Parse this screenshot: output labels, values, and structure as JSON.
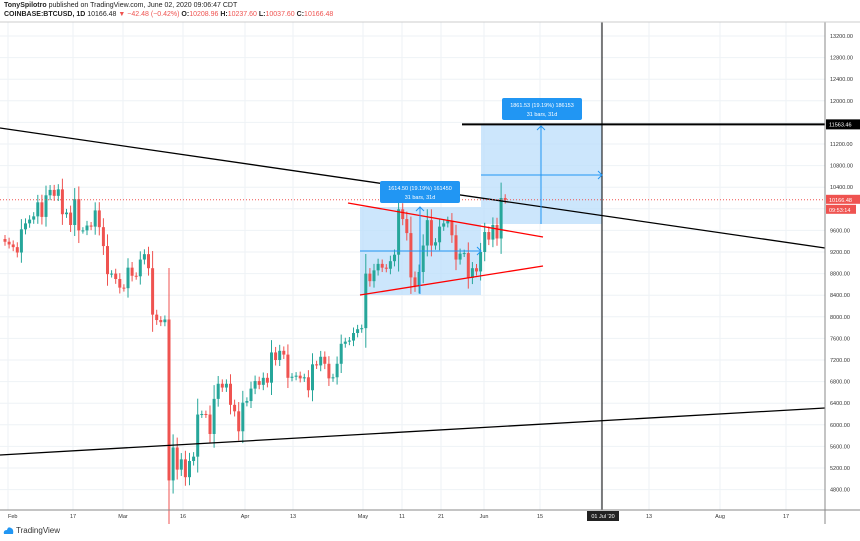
{
  "header": {
    "author": "TonySpilotro",
    "published": "published on TradingView.com, June 02, 2020 09:06:47 CDT",
    "symbol": "COINBASE:BTCUSD, 1D",
    "last": "10166.48",
    "change": "−42.48 (−0.42%)",
    "o_label": "O:",
    "o": "10208.96",
    "h_label": "H:",
    "h": "10237.60",
    "l_label": "L:",
    "l": "10037.60",
    "c_label": "C:",
    "c": "10166.48"
  },
  "footer": {
    "brand": "TradingView"
  },
  "colors": {
    "up": "#26a69a",
    "down": "#ef5350",
    "range": "#2962ff",
    "box": "#bbdefb",
    "label": "#2196f3"
  },
  "chart_data": {
    "type": "candlestick",
    "y_ticks": [
      4800,
      5200,
      5600,
      6000,
      6400,
      6800,
      7200,
      7600,
      8000,
      8400,
      8800,
      9200,
      9600,
      10000,
      10400,
      10800,
      11200,
      11600,
      12000,
      12400,
      12800,
      13200
    ],
    "ylim": [
      4600,
      13500
    ],
    "x_ticks": [
      "Feb",
      "17",
      "Mar",
      "16",
      "Apr",
      "13",
      "May",
      "11",
      "21",
      "Jun",
      "15",
      "01 Jul '20",
      "13",
      "Aug",
      "17"
    ],
    "start_date": "2020-02-01",
    "closes": [
      9390,
      9340,
      9290,
      9190,
      9620,
      9730,
      9800,
      9860,
      10120,
      9850,
      10250,
      10350,
      10240,
      10360,
      9900,
      9930,
      9700,
      10180,
      9600,
      9600,
      9690,
      9670,
      9970,
      9660,
      9310,
      8790,
      8800,
      8700,
      8540,
      8530,
      8910,
      8760,
      8750,
      9060,
      9160,
      8900,
      8040,
      7940,
      7900,
      7950,
      4970,
      5580,
      5170,
      5360,
      5030,
      5330,
      5410,
      6190,
      6200,
      6190,
      5830,
      6480,
      6760,
      6690,
      6760,
      6370,
      6250,
      5880,
      6410,
      6440,
      6670,
      6810,
      6740,
      6870,
      6780,
      7340,
      7200,
      7370,
      7300,
      6870,
      6890,
      6910,
      6860,
      6880,
      6640,
      7120,
      7100,
      7260,
      7130,
      6860,
      6880,
      7130,
      7500,
      7540,
      7560,
      7700,
      7770,
      7790,
      8800,
      8660,
      8860,
      8980,
      8910,
      8890,
      9030,
      9150,
      9990,
      9810,
      9550,
      8730,
      8570,
      8830,
      9320,
      9790,
      9320,
      9380,
      9670,
      9730,
      9780,
      9510,
      9060,
      9170,
      9180,
      8720,
      8900,
      8840,
      9200,
      9570,
      9430,
      9700,
      9450,
      10200,
      10166.48
    ],
    "last_price_label": "10166.48",
    "countdown": "09:53:14",
    "level_label": "11563.46",
    "crosshair_date": "01 Jul '20",
    "measures": [
      {
        "line1": "1614.50 (19.19%) 161450",
        "line2": "31 bars, 31d"
      },
      {
        "line1": "1861.53 (19.19%) 186153",
        "line2": "31 bars, 31d"
      }
    ]
  }
}
